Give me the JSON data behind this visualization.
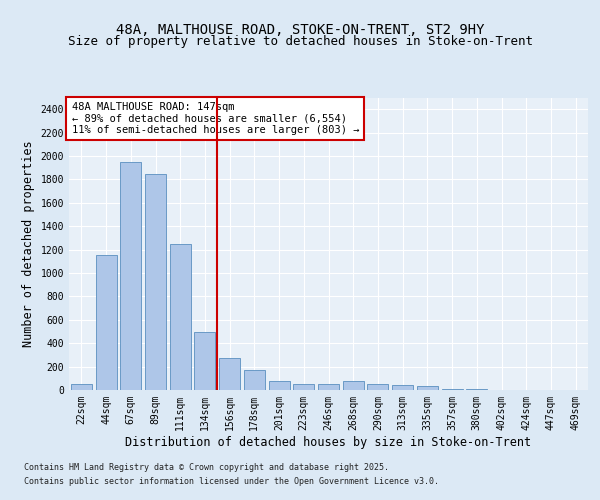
{
  "title1": "48A, MALTHOUSE ROAD, STOKE-ON-TRENT, ST2 9HY",
  "title2": "Size of property relative to detached houses in Stoke-on-Trent",
  "xlabel": "Distribution of detached houses by size in Stoke-on-Trent",
  "ylabel": "Number of detached properties",
  "categories": [
    "22sqm",
    "44sqm",
    "67sqm",
    "89sqm",
    "111sqm",
    "134sqm",
    "156sqm",
    "178sqm",
    "201sqm",
    "223sqm",
    "246sqm",
    "268sqm",
    "290sqm",
    "313sqm",
    "335sqm",
    "357sqm",
    "380sqm",
    "402sqm",
    "424sqm",
    "447sqm",
    "469sqm"
  ],
  "values": [
    50,
    1150,
    1950,
    1850,
    1250,
    500,
    270,
    170,
    80,
    50,
    50,
    75,
    50,
    40,
    30,
    10,
    5,
    3,
    2,
    1,
    1
  ],
  "bar_color": "#aec6e8",
  "bar_edge_color": "#5a8fc0",
  "vline_x": 5.5,
  "vline_color": "#cc0000",
  "annotation_text": "48A MALTHOUSE ROAD: 147sqm\n← 89% of detached houses are smaller (6,554)\n11% of semi-detached houses are larger (803) →",
  "annotation_box_color": "#ffffff",
  "annotation_box_edge": "#cc0000",
  "ylim": [
    0,
    2500
  ],
  "yticks": [
    0,
    200,
    400,
    600,
    800,
    1000,
    1200,
    1400,
    1600,
    1800,
    2000,
    2200,
    2400
  ],
  "footer1": "Contains HM Land Registry data © Crown copyright and database right 2025.",
  "footer2": "Contains public sector information licensed under the Open Government Licence v3.0.",
  "bg_color": "#dce9f5",
  "plot_bg_color": "#e8f0f8",
  "grid_color": "#ffffff",
  "title_fontsize": 10,
  "subtitle_fontsize": 9,
  "tick_fontsize": 7,
  "label_fontsize": 8.5,
  "annotation_fontsize": 7.5,
  "footer_fontsize": 6
}
